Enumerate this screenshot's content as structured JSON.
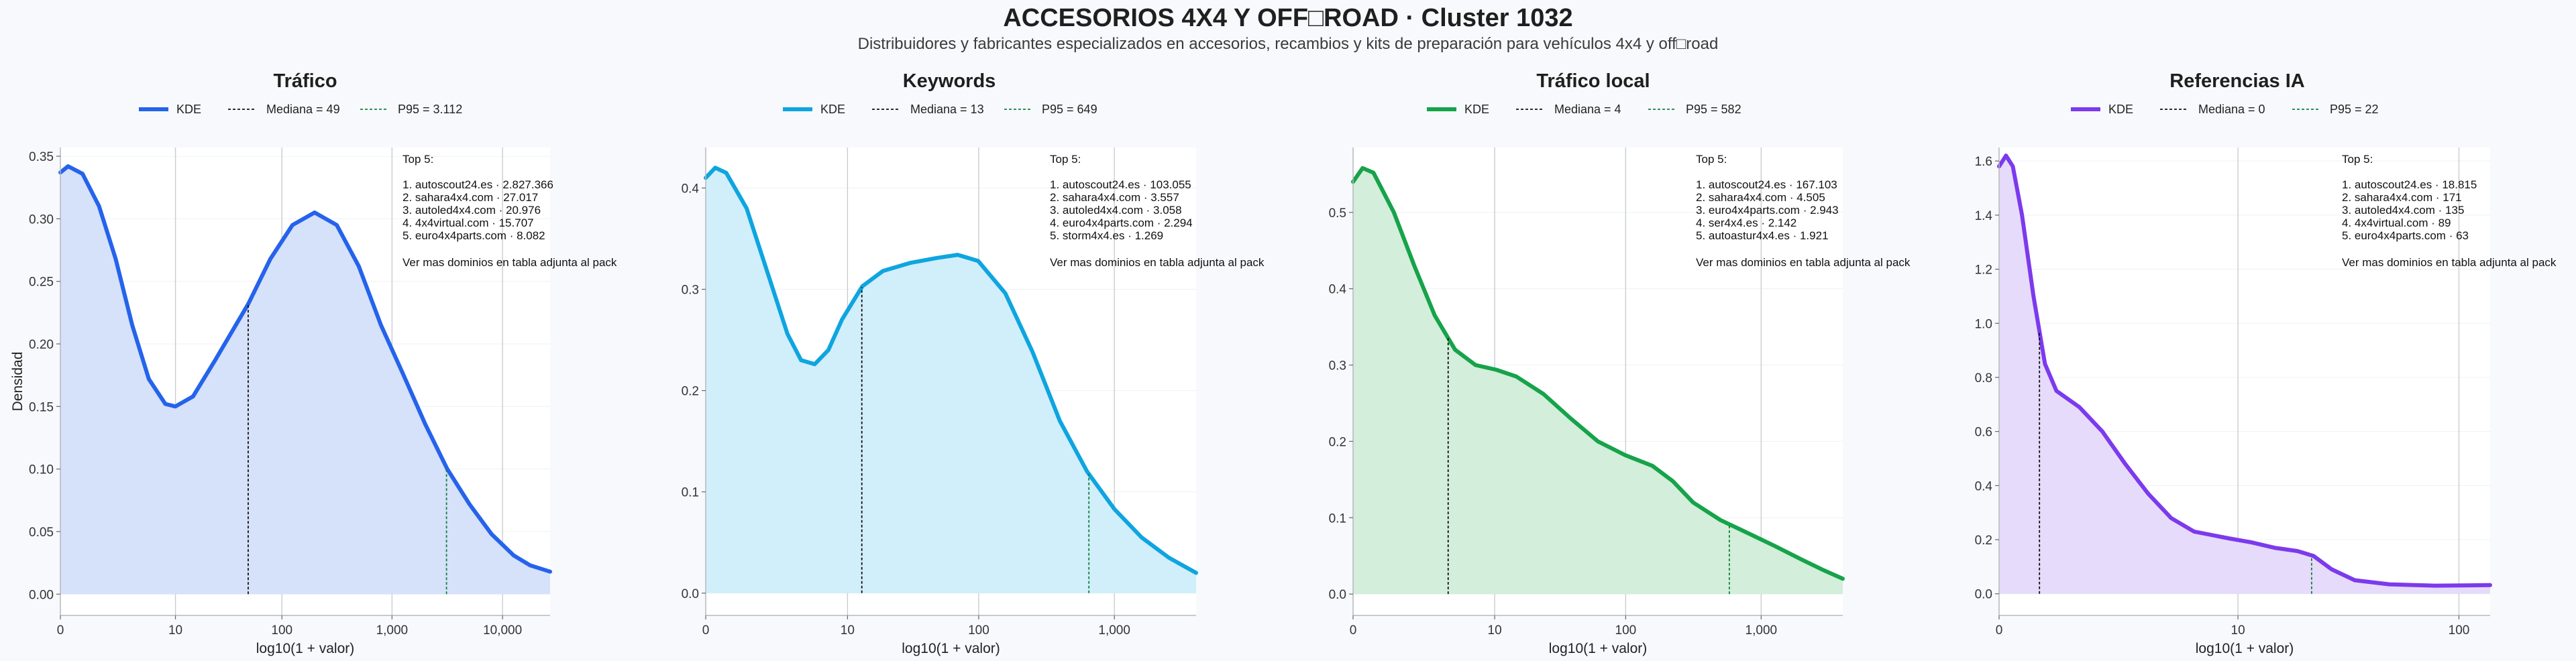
{
  "title": "ACCESORIOS 4X4 Y OFF□ROAD · Cluster 1032",
  "subtitle": "Distribuidores y fabricantes especializados en accesorios, recambios y kits de preparación para vehículos 4x4 y off□road",
  "shared_ylabel": "Densidad",
  "chart_data": [
    {
      "type": "area",
      "title": "Tráfico",
      "color": "#2563eb",
      "fill": "#d6e1fa",
      "legend": [
        "KDE",
        "Mediana = 49",
        "P95 = 3.112"
      ],
      "xlabel": "log10(1 + valor)",
      "xlim": [
        0,
        4.43
      ],
      "xticks": [
        {
          "v": 0,
          "label": "0"
        },
        {
          "v": 1.041,
          "label": "10"
        },
        {
          "v": 2.004,
          "label": "100"
        },
        {
          "v": 3.0,
          "label": "1,000"
        },
        {
          "v": 4.0,
          "label": "10,000"
        }
      ],
      "ylim": [
        -0.017,
        0.357
      ],
      "yticks": [
        {
          "v": 0,
          "label": "0.00"
        },
        {
          "v": 0.05,
          "label": "0.05"
        },
        {
          "v": 0.1,
          "label": "0.10"
        },
        {
          "v": 0.15,
          "label": "0.15"
        },
        {
          "v": 0.2,
          "label": "0.20"
        },
        {
          "v": 0.25,
          "label": "0.25"
        },
        {
          "v": 0.3,
          "label": "0.30"
        },
        {
          "v": 0.35,
          "label": "0.35"
        }
      ],
      "median_x": 1.699,
      "p95_x": 3.493,
      "curve": [
        [
          0,
          0.337
        ],
        [
          0.07,
          0.342
        ],
        [
          0.2,
          0.336
        ],
        [
          0.35,
          0.31
        ],
        [
          0.5,
          0.268
        ],
        [
          0.65,
          0.215
        ],
        [
          0.8,
          0.172
        ],
        [
          0.95,
          0.152
        ],
        [
          1.04,
          0.15
        ],
        [
          1.2,
          0.158
        ],
        [
          1.4,
          0.187
        ],
        [
          1.7,
          0.232
        ],
        [
          1.9,
          0.268
        ],
        [
          2.1,
          0.295
        ],
        [
          2.3,
          0.305
        ],
        [
          2.5,
          0.295
        ],
        [
          2.7,
          0.262
        ],
        [
          2.9,
          0.215
        ],
        [
          3.1,
          0.176
        ],
        [
          3.3,
          0.136
        ],
        [
          3.5,
          0.1
        ],
        [
          3.7,
          0.072
        ],
        [
          3.9,
          0.048
        ],
        [
          4.1,
          0.031
        ],
        [
          4.25,
          0.023
        ],
        [
          4.43,
          0.018
        ]
      ],
      "annotation": {
        "heading": "Top 5:",
        "items": [
          "1. autoscout24.es · 2.827.366",
          "2. sahara4x4.com · 27.017",
          "3. autoled4x4.com · 20.976",
          "4. 4x4virtual.com · 15.707",
          "5. euro4x4parts.com · 8.082"
        ],
        "footer": "Ver mas dominios en tabla adjunta al pack"
      }
    },
    {
      "type": "area",
      "title": "Keywords",
      "color": "#0ea5e0",
      "fill": "#d1eefb",
      "legend": [
        "KDE",
        "Mediana = 13",
        "P95 = 649"
      ],
      "xlabel": "log10(1 + valor)",
      "xlim": [
        0,
        3.6
      ],
      "xticks": [
        {
          "v": 0,
          "label": "0"
        },
        {
          "v": 1.041,
          "label": "10"
        },
        {
          "v": 2.004,
          "label": "100"
        },
        {
          "v": 3.0,
          "label": "1,000"
        }
      ],
      "ylim": [
        -0.022,
        0.44
      ],
      "yticks": [
        {
          "v": 0,
          "label": "0.0"
        },
        {
          "v": 0.1,
          "label": "0.1"
        },
        {
          "v": 0.2,
          "label": "0.2"
        },
        {
          "v": 0.3,
          "label": "0.3"
        },
        {
          "v": 0.4,
          "label": "0.4"
        }
      ],
      "median_x": 1.146,
      "p95_x": 2.813,
      "curve": [
        [
          0,
          0.41
        ],
        [
          0.07,
          0.42
        ],
        [
          0.15,
          0.415
        ],
        [
          0.3,
          0.38
        ],
        [
          0.45,
          0.318
        ],
        [
          0.6,
          0.256
        ],
        [
          0.7,
          0.23
        ],
        [
          0.8,
          0.226
        ],
        [
          0.9,
          0.24
        ],
        [
          1.0,
          0.27
        ],
        [
          1.15,
          0.303
        ],
        [
          1.3,
          0.318
        ],
        [
          1.5,
          0.326
        ],
        [
          1.7,
          0.331
        ],
        [
          1.85,
          0.334
        ],
        [
          2.0,
          0.328
        ],
        [
          2.2,
          0.296
        ],
        [
          2.4,
          0.238
        ],
        [
          2.6,
          0.17
        ],
        [
          2.8,
          0.12
        ],
        [
          3.0,
          0.083
        ],
        [
          3.2,
          0.055
        ],
        [
          3.4,
          0.035
        ],
        [
          3.6,
          0.02
        ]
      ],
      "annotation": {
        "heading": "Top 5:",
        "items": [
          "1. autoscout24.es · 103.055",
          "2. sahara4x4.com · 3.557",
          "3. autoled4x4.com · 3.058",
          "4. euro4x4parts.com · 2.294",
          "5. storm4x4.es · 1.269"
        ],
        "footer": "Ver mas dominios en tabla adjunta al pack"
      }
    },
    {
      "type": "area",
      "title": "Tráfico local",
      "color": "#16a34a",
      "fill": "#d3eedb",
      "legend": [
        "KDE",
        "Mediana = 4",
        "P95 = 582"
      ],
      "xlabel": "log10(1 + valor)",
      "xlim": [
        0,
        3.6
      ],
      "xticks": [
        {
          "v": 0,
          "label": "0"
        },
        {
          "v": 1.041,
          "label": "10"
        },
        {
          "v": 2.004,
          "label": "100"
        },
        {
          "v": 3.0,
          "label": "1,000"
        }
      ],
      "ylim": [
        -0.028,
        0.585
      ],
      "yticks": [
        {
          "v": 0,
          "label": "0.0"
        },
        {
          "v": 0.1,
          "label": "0.1"
        },
        {
          "v": 0.2,
          "label": "0.2"
        },
        {
          "v": 0.3,
          "label": "0.3"
        },
        {
          "v": 0.4,
          "label": "0.4"
        },
        {
          "v": 0.5,
          "label": "0.5"
        }
      ],
      "median_x": 0.699,
      "p95_x": 2.766,
      "curve": [
        [
          0,
          0.54
        ],
        [
          0.07,
          0.558
        ],
        [
          0.15,
          0.552
        ],
        [
          0.3,
          0.5
        ],
        [
          0.45,
          0.43
        ],
        [
          0.6,
          0.365
        ],
        [
          0.75,
          0.32
        ],
        [
          0.9,
          0.3
        ],
        [
          1.05,
          0.294
        ],
        [
          1.2,
          0.285
        ],
        [
          1.4,
          0.262
        ],
        [
          1.6,
          0.23
        ],
        [
          1.8,
          0.2
        ],
        [
          2.0,
          0.182
        ],
        [
          2.2,
          0.168
        ],
        [
          2.35,
          0.148
        ],
        [
          2.5,
          0.12
        ],
        [
          2.7,
          0.097
        ],
        [
          2.9,
          0.08
        ],
        [
          3.1,
          0.063
        ],
        [
          3.3,
          0.045
        ],
        [
          3.45,
          0.032
        ],
        [
          3.6,
          0.02
        ]
      ],
      "annotation": {
        "heading": "Top 5:",
        "items": [
          "1. autoscout24.es · 167.103",
          "2. sahara4x4.com · 4.505",
          "3. euro4x4parts.com · 2.943",
          "4. ser4x4.es · 2.142",
          "5. autoastur4x4.es · 1.921"
        ],
        "footer": "Ver mas dominios en tabla adjunta al pack"
      }
    },
    {
      "type": "area",
      "title": "Referencias IA",
      "color": "#7c3aed",
      "fill": "#e6dbfa",
      "legend": [
        "KDE",
        "Mediana = 0",
        "P95 = 22"
      ],
      "xlabel": "log10(1 + valor)",
      "xlim": [
        0,
        2.14
      ],
      "xticks": [
        {
          "v": 0,
          "label": "0"
        },
        {
          "v": 1.041,
          "label": "10"
        },
        {
          "v": 2.004,
          "label": "100"
        }
      ],
      "ylim": [
        -0.08,
        1.65
      ],
      "yticks": [
        {
          "v": 0,
          "label": "0.0"
        },
        {
          "v": 0.2,
          "label": "0.2"
        },
        {
          "v": 0.4,
          "label": "0.4"
        },
        {
          "v": 0.6,
          "label": "0.6"
        },
        {
          "v": 0.8,
          "label": "0.8"
        },
        {
          "v": 1.0,
          "label": "1.0"
        },
        {
          "v": 1.2,
          "label": "1.2"
        },
        {
          "v": 1.4,
          "label": "1.4"
        },
        {
          "v": 1.6,
          "label": "1.6"
        }
      ],
      "median_x": 0.176,
      "p95_x": 1.362,
      "curve": [
        [
          0,
          1.58
        ],
        [
          0.03,
          1.62
        ],
        [
          0.06,
          1.58
        ],
        [
          0.1,
          1.4
        ],
        [
          0.15,
          1.1
        ],
        [
          0.2,
          0.85
        ],
        [
          0.25,
          0.75
        ],
        [
          0.3,
          0.72
        ],
        [
          0.35,
          0.69
        ],
        [
          0.45,
          0.6
        ],
        [
          0.55,
          0.48
        ],
        [
          0.65,
          0.37
        ],
        [
          0.75,
          0.28
        ],
        [
          0.85,
          0.23
        ],
        [
          1.0,
          0.205
        ],
        [
          1.1,
          0.19
        ],
        [
          1.2,
          0.17
        ],
        [
          1.3,
          0.158
        ],
        [
          1.37,
          0.14
        ],
        [
          1.45,
          0.09
        ],
        [
          1.55,
          0.05
        ],
        [
          1.7,
          0.035
        ],
        [
          1.9,
          0.03
        ],
        [
          2.14,
          0.032
        ]
      ],
      "annotation": {
        "heading": "Top 5:",
        "items": [
          "1. autoscout24.es · 18.815",
          "2. sahara4x4.com · 171",
          "3. autoled4x4.com · 135",
          "4. 4x4virtual.com · 89",
          "5. euro4x4parts.com · 63"
        ],
        "footer": "Ver mas dominios en tabla adjunta al pack"
      }
    }
  ]
}
